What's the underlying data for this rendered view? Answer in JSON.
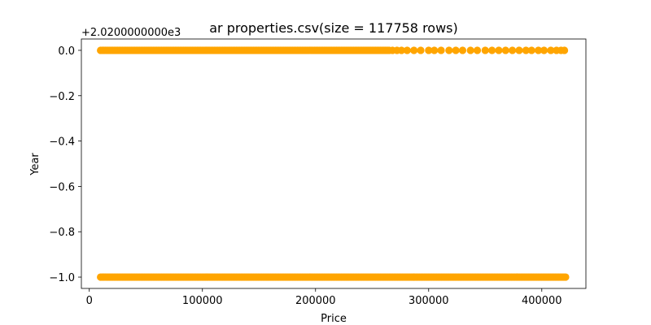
{
  "chart_data": {
    "type": "scatter",
    "title": "ar properties.csv(size = 117758 rows)",
    "xlabel": "Price",
    "ylabel": "Year",
    "offset_text": "+2.0200000000e3",
    "xlim": [
      -7000,
      439000
    ],
    "ylim": [
      -1.05,
      0.05
    ],
    "x_ticks": [
      {
        "value": 0,
        "label": "0"
      },
      {
        "value": 100000,
        "label": "100000"
      },
      {
        "value": 200000,
        "label": "200000"
      },
      {
        "value": 300000,
        "label": "300000"
      },
      {
        "value": 400000,
        "label": "400000"
      }
    ],
    "y_ticks": [
      {
        "value": 0.0,
        "label": "0.0"
      },
      {
        "value": -0.2,
        "label": "−0.2"
      },
      {
        "value": -0.4,
        "label": "−0.4"
      },
      {
        "value": -0.6,
        "label": "−0.6"
      },
      {
        "value": -0.8,
        "label": "−0.8"
      },
      {
        "value": -1.0,
        "label": "−1.0"
      }
    ],
    "grid": false,
    "marker_color": "#ffa500",
    "series": [
      {
        "y": 0.0,
        "x_dense_range": [
          10000,
          265000
        ],
        "x_sparse": [
          268000,
          272000,
          276000,
          281000,
          287000,
          293000,
          300000,
          305000,
          311000,
          318000,
          324000,
          330000,
          337000,
          343000,
          350000,
          356000,
          362000,
          368000,
          374000,
          380000,
          386000,
          391000,
          397000,
          402000,
          408000,
          413000,
          417000,
          420000
        ]
      },
      {
        "y": -1.0,
        "x_dense_range": [
          10000,
          422000
        ],
        "x_sparse": []
      }
    ]
  }
}
